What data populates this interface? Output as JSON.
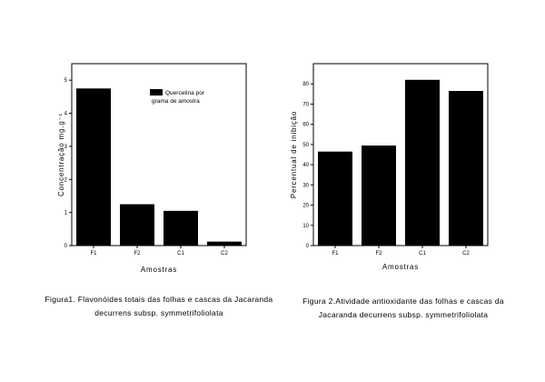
{
  "chart_data": [
    {
      "type": "bar",
      "categories": [
        "F1",
        "F2",
        "C1",
        "C2"
      ],
      "values": [
        4.75,
        1.25,
        1.05,
        0.12
      ],
      "ylim": [
        0,
        5.5
      ],
      "yticks": [
        "0",
        "1",
        "2",
        "3",
        "4",
        "5"
      ],
      "ylabel": "Concentração mg.g⁻¹",
      "xlabel": "Amostras",
      "legend": {
        "label_line1": "Quercetina por",
        "label_line2": "grama de amostra",
        "placement": "top-right"
      },
      "caption_line1": "Figura1. Flavonóides totais das folhas e cascas da Jacaranda",
      "caption_line2": "decurrens subsp. symmetrifoliolata",
      "bar_color": "#000000"
    },
    {
      "type": "bar",
      "categories": [
        "F1",
        "F2",
        "C1",
        "C2"
      ],
      "values": [
        46.5,
        49.5,
        82,
        76.5
      ],
      "ylim": [
        0,
        90
      ],
      "yticks": [
        "0",
        "10",
        "20",
        "30",
        "40",
        "50",
        "60",
        "70",
        "80"
      ],
      "ylabel": "Percentual de inibição",
      "xlabel": "Amostras",
      "caption_line1": "Figura 2.Atividade antioxidante das folhas e cascas da",
      "caption_line2": "Jacaranda decurrens subsp. symmetrifoliolata",
      "bar_color": "#000000"
    }
  ]
}
